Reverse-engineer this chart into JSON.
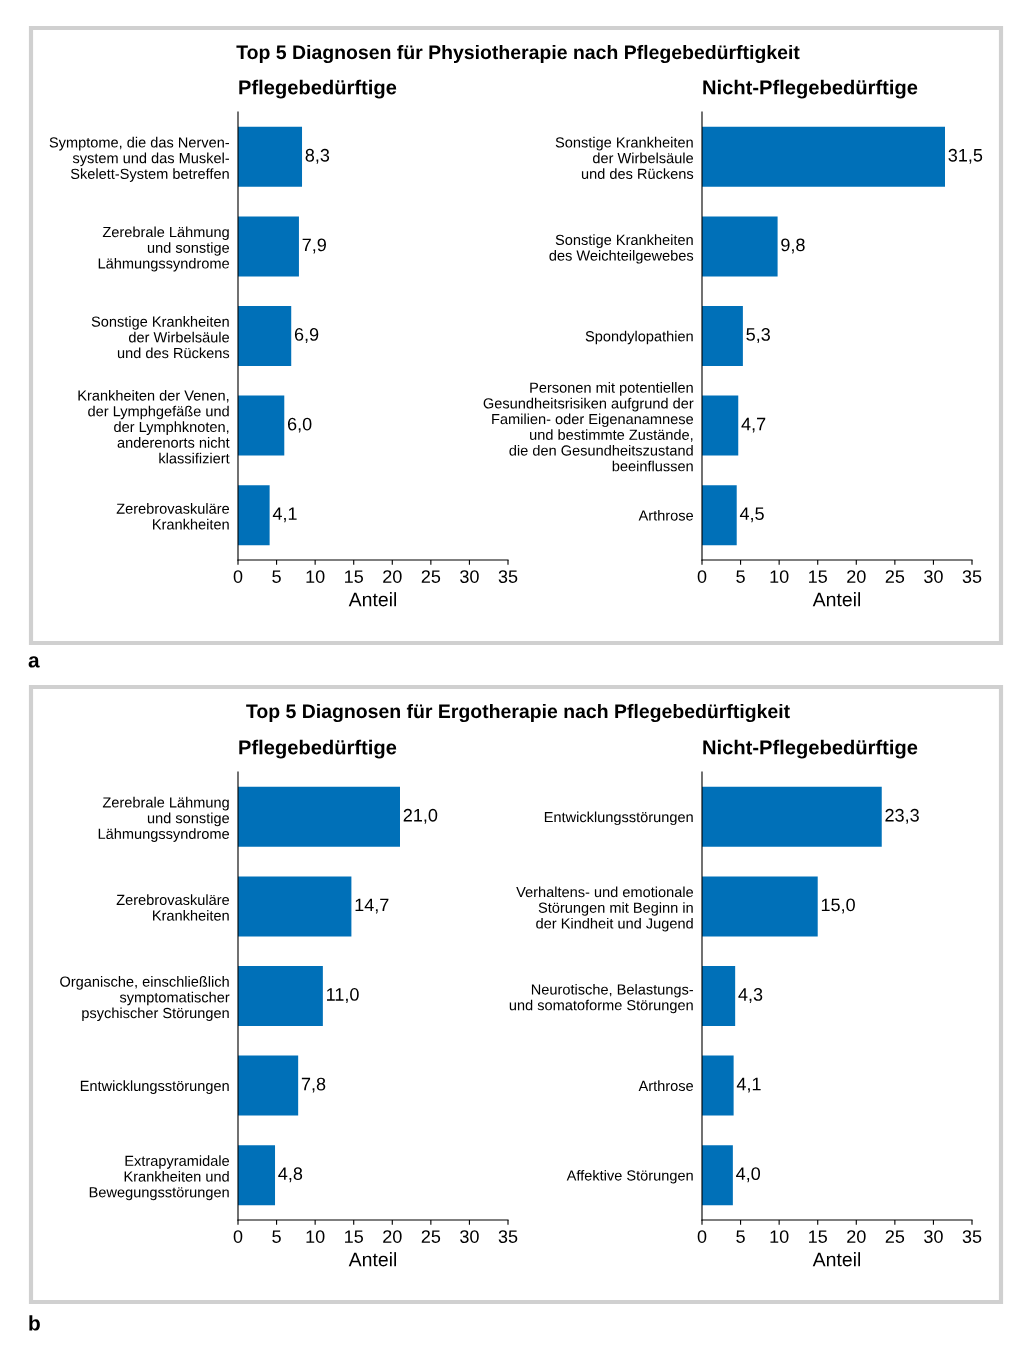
{
  "chart_data": [
    {
      "type": "bar",
      "orientation": "horizontal",
      "title": "Top 5 Diagnosen für Physiotherapie nach Pflegebedürftigkeit",
      "subtitle": "Pflegebedürftige",
      "xlabel": "Anteil",
      "annotations": [
        "a"
      ],
      "categories": [
        "Symptome, die das Nerven-\nsystem und das Muskel-\nSkelett-System betreffen",
        "Zerebrale Lähmung\nund sonstige\nLähmungssyndrome",
        "Sonstige Krankheiten\nder Wirbelsäule\nund des Rückens",
        "Krankheiten der Venen,\nder Lymphgefäße und\nder Lymphknoten,\nanderenorts nicht\nklassifiziert",
        "Zerebrovaskuläre\nKrankheiten"
      ],
      "values": [
        8.3,
        7.9,
        6.9,
        6.0,
        4.1
      ],
      "value_labels": [
        "8,3",
        "7,9",
        "6,9",
        "6,0",
        "4,1"
      ],
      "color": "#0070b8",
      "xlim": [
        0,
        35
      ],
      "xticks": [
        0,
        5,
        10,
        15,
        20,
        25,
        30,
        35
      ],
      "grid": false,
      "legend": false
    },
    {
      "type": "bar",
      "orientation": "horizontal",
      "subtitle": "Nicht-Pflegebedürftige",
      "xlabel": "Anteil",
      "categories": [
        "Sonstige Krankheiten\nder Wirbelsäule\nund des Rückens",
        "Sonstige Krankheiten\ndes Weichteilgewebes",
        "Spondylopathien",
        "Personen mit potentiellen\nGesundheitsrisiken aufgrund der\nFamilien- oder Eigenanamnese\nund bestimmte Zustände,\ndie den Gesundheitszustand\nbeeinflussen",
        "Arthrose"
      ],
      "values": [
        31.5,
        9.8,
        5.3,
        4.7,
        4.5
      ],
      "value_labels": [
        "31,5",
        "9,8",
        "5,3",
        "4,7",
        "4,5"
      ],
      "color": "#0070b8",
      "xlim": [
        0,
        35
      ],
      "xticks": [
        0,
        5,
        10,
        15,
        20,
        25,
        30,
        35
      ],
      "grid": false,
      "legend": false
    },
    {
      "type": "bar",
      "orientation": "horizontal",
      "title": "Top 5 Diagnosen für Ergotherapie nach Pflegebedürftigkeit",
      "subtitle": "Pflegebedürftige",
      "xlabel": "Anteil",
      "annotations": [
        "b"
      ],
      "categories": [
        "Zerebrale Lähmung\nund sonstige\nLähmungssyndrome",
        "Zerebrovaskuläre\nKrankheiten",
        "Organische, einschließlich\nsymptomatischer\npsychischer Störungen",
        "Entwicklungsstörungen",
        "Extrapyramidale\nKrankheiten und\nBewegungsstörungen"
      ],
      "values": [
        21.0,
        14.7,
        11.0,
        7.8,
        4.8
      ],
      "value_labels": [
        "21,0",
        "14,7",
        "11,0",
        "7,8",
        "4,8"
      ],
      "color": "#0070b8",
      "xlim": [
        0,
        35
      ],
      "xticks": [
        0,
        5,
        10,
        15,
        20,
        25,
        30,
        35
      ],
      "grid": false,
      "legend": false
    },
    {
      "type": "bar",
      "orientation": "horizontal",
      "subtitle": "Nicht-Pflegebedürftige",
      "xlabel": "Anteil",
      "categories": [
        "Entwicklungsstörungen",
        "Verhaltens- und emotionale\nStörungen mit Beginn in\nder Kindheit und Jugend",
        "Neurotische, Belastungs-\nund somatoforme Störungen",
        "Arthrose",
        "Affektive Störungen"
      ],
      "values": [
        23.3,
        15.0,
        4.3,
        4.1,
        4.0
      ],
      "value_labels": [
        "23,3",
        "15,0",
        "4,3",
        "4,1",
        "4,0"
      ],
      "color": "#0070b8",
      "xlim": [
        0,
        35
      ],
      "xticks": [
        0,
        5,
        10,
        15,
        20,
        25,
        30,
        35
      ],
      "grid": false,
      "legend": false
    }
  ]
}
